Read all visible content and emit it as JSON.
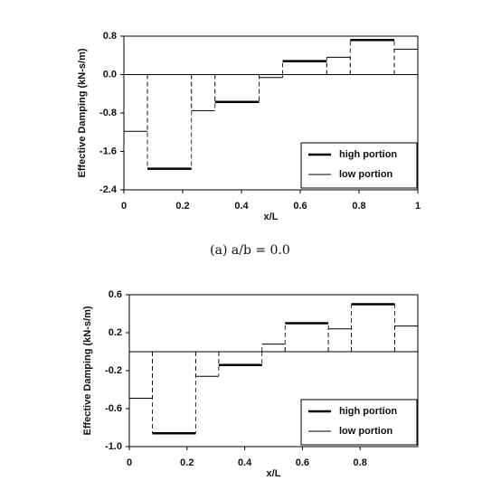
{
  "chart_data": [
    {
      "type": "step",
      "caption": "(a) a/b = 0.0",
      "xlabel": "x/L",
      "ylabel": "Effective Damping (kN-s/m)",
      "xlim": [
        0,
        1
      ],
      "xticks": [
        0,
        0.2,
        0.4,
        0.6,
        0.8,
        1
      ],
      "ylim": [
        -2.4,
        0.8
      ],
      "yticks": [
        -2.4,
        -1.6,
        -0.8,
        {
          "value": 0,
          "label": "0.0"
        },
        0.8
      ],
      "legend": "lower right",
      "series": [
        {
          "name": "high portion",
          "color": "#000000",
          "line_width": 2.5,
          "x_start": [
            0.08,
            0.31,
            0.54,
            0.77
          ],
          "x_end": [
            0.23,
            0.46,
            0.69,
            0.92
          ],
          "values": [
            -1.96,
            -0.57,
            0.28,
            0.72
          ]
        },
        {
          "name": "low portion",
          "color": "#000000",
          "line_width": 1,
          "x_start": [
            0,
            0.23,
            0.46,
            0.69,
            0.92
          ],
          "x_end": [
            0.08,
            0.31,
            0.54,
            0.77,
            1
          ],
          "values": [
            -1.18,
            -0.75,
            -0.06,
            0.36,
            0.53
          ]
        }
      ]
    },
    {
      "type": "step",
      "xlabel": "x/L",
      "ylabel": "Effective Damping (kN-s/m)",
      "xlim": [
        0,
        1
      ],
      "xticks": [
        0,
        0.2,
        0.4,
        0.6,
        0.8
      ],
      "ylim": [
        -1,
        0.6
      ],
      "yticks": [
        {
          "value": -1,
          "label": "-1.0"
        },
        -0.6,
        -0.2,
        0.2,
        0.6
      ],
      "legend": "lower right",
      "series": [
        {
          "name": "high portion",
          "color": "#000000",
          "line_width": 2.5,
          "x_start": [
            0.08,
            0.31,
            0.54,
            0.77
          ],
          "x_end": [
            0.23,
            0.46,
            0.69,
            0.92
          ],
          "values": [
            -0.86,
            -0.14,
            0.3,
            0.5
          ]
        },
        {
          "name": "low portion",
          "color": "#000000",
          "line_width": 1,
          "x_start": [
            0,
            0.23,
            0.46,
            0.69,
            0.92
          ],
          "x_end": [
            0.08,
            0.31,
            0.54,
            0.77,
            1
          ],
          "values": [
            -0.49,
            -0.26,
            0.08,
            0.24,
            0.27
          ]
        }
      ]
    }
  ]
}
